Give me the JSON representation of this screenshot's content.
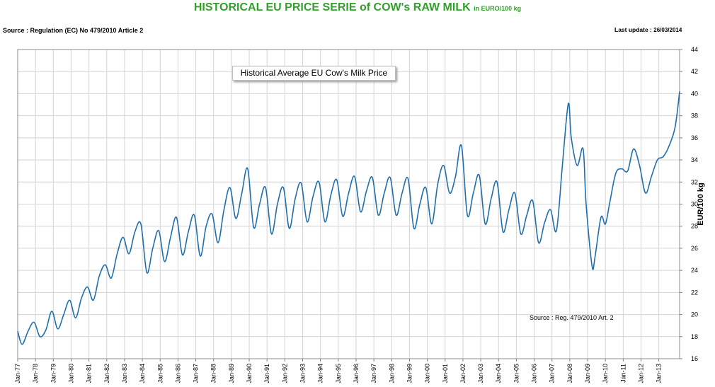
{
  "header": {
    "title": "HISTORICAL EU PRICE SERIE of COW's RAW MILK",
    "unit": "in EURO/100 kg",
    "source": "Source : Regulation (EC) No 479/2010 Article 2",
    "last_update_label": "Last update :",
    "last_update_date": "26/03/2014"
  },
  "chart_data": {
    "type": "line",
    "title": "Historical Average EU Cow's Milk Price",
    "ylabel": "EUR/100 kg",
    "annotation": "Source : Reg. 479/2010 Art. 2",
    "ylim": [
      16,
      44
    ],
    "yticks": [
      16,
      18,
      20,
      22,
      24,
      26,
      28,
      30,
      32,
      34,
      36,
      38,
      40,
      42,
      44
    ],
    "xlim": [
      "1977-01",
      "2014-03"
    ],
    "xticks": [
      "Jan-77",
      "Jan-78",
      "Jan-79",
      "Jan-80",
      "Jan-81",
      "Jan-82",
      "Jan-83",
      "Jan-84",
      "Jan-85",
      "Jan-86",
      "Jan-87",
      "Jan-88",
      "Jan-89",
      "Jan-90",
      "Jan-91",
      "Jan-92",
      "Jan-93",
      "Jan-94",
      "Jan-95",
      "Jan-96",
      "Jan-97",
      "Jan-98",
      "Jan-99",
      "Jan-00",
      "Jan-01",
      "Jan-02",
      "Jan-03",
      "Jan-04",
      "Jan-05",
      "Jan-06",
      "Jan-07",
      "Jan-08",
      "Jan-09",
      "Jan-10",
      "Jan-11",
      "Jan-12",
      "Jan-13"
    ],
    "grid": true,
    "y_axis_side": "right",
    "series": [
      {
        "color": "#1f6fad",
        "x": [
          "1977-01",
          "1977-04",
          "1977-08",
          "1977-12",
          "1978-04",
          "1978-08",
          "1978-12",
          "1979-04",
          "1979-08",
          "1979-12",
          "1980-04",
          "1980-08",
          "1980-12",
          "1981-04",
          "1981-08",
          "1981-12",
          "1982-04",
          "1982-08",
          "1982-12",
          "1983-04",
          "1983-08",
          "1983-12",
          "1984-04",
          "1984-08",
          "1984-12",
          "1985-04",
          "1985-08",
          "1985-12",
          "1986-04",
          "1986-08",
          "1986-12",
          "1987-04",
          "1987-08",
          "1987-12",
          "1988-04",
          "1988-08",
          "1988-12",
          "1989-04",
          "1989-08",
          "1989-12",
          "1990-04",
          "1990-08",
          "1990-12",
          "1991-04",
          "1991-08",
          "1991-12",
          "1992-04",
          "1992-08",
          "1992-12",
          "1993-04",
          "1993-08",
          "1993-12",
          "1994-04",
          "1994-08",
          "1994-12",
          "1995-04",
          "1995-08",
          "1995-12",
          "1996-04",
          "1996-08",
          "1996-12",
          "1997-04",
          "1997-08",
          "1997-12",
          "1998-04",
          "1998-08",
          "1998-12",
          "1999-04",
          "1999-08",
          "1999-12",
          "2000-04",
          "2000-08",
          "2000-12",
          "2001-04",
          "2001-08",
          "2001-12",
          "2002-04",
          "2002-08",
          "2002-12",
          "2003-04",
          "2003-08",
          "2003-12",
          "2004-04",
          "2004-08",
          "2004-12",
          "2005-04",
          "2005-08",
          "2005-12",
          "2006-04",
          "2006-08",
          "2006-12",
          "2007-04",
          "2007-08",
          "2007-12",
          "2008-02",
          "2008-06",
          "2008-10",
          "2008-12",
          "2009-04",
          "2009-06",
          "2009-10",
          "2010-01",
          "2010-04",
          "2010-08",
          "2010-12",
          "2011-04",
          "2011-08",
          "2011-12",
          "2012-04",
          "2012-08",
          "2012-12",
          "2013-04",
          "2013-08",
          "2013-12",
          "2014-03"
        ],
        "y": [
          18.5,
          17.3,
          18.5,
          19.3,
          18.0,
          18.6,
          20.3,
          18.7,
          20.0,
          21.3,
          19.7,
          21.5,
          22.5,
          21.3,
          23.5,
          24.5,
          23.3,
          25.5,
          27.0,
          25.5,
          27.5,
          28.2,
          23.8,
          26.0,
          27.6,
          24.8,
          27.0,
          28.8,
          25.4,
          27.5,
          29.0,
          25.3,
          28.0,
          29.1,
          26.5,
          29.5,
          31.5,
          28.7,
          31.0,
          33.2,
          27.9,
          30.0,
          31.5,
          27.3,
          30.0,
          31.5,
          27.8,
          30.5,
          31.9,
          28.4,
          30.7,
          32.0,
          28.4,
          30.8,
          32.2,
          28.9,
          31.0,
          32.5,
          29.3,
          31.2,
          32.4,
          29.0,
          31.0,
          32.4,
          29.0,
          31.0,
          32.3,
          27.8,
          30.0,
          31.5,
          28.2,
          31.8,
          33.5,
          31.0,
          32.5,
          35.3,
          29.0,
          31.0,
          32.6,
          28.2,
          30.5,
          32.0,
          27.5,
          29.5,
          31.0,
          27.3,
          29.0,
          30.3,
          26.5,
          28.3,
          29.5,
          27.6,
          33.5,
          39.1,
          36.0,
          33.5,
          35.0,
          30.0,
          24.4,
          25.2,
          28.8,
          28.2,
          30.2,
          32.8,
          33.2,
          33.0,
          35.0,
          33.5,
          31.0,
          32.5,
          34.0,
          34.3,
          35.3,
          37.0,
          40.2
        ]
      }
    ]
  }
}
